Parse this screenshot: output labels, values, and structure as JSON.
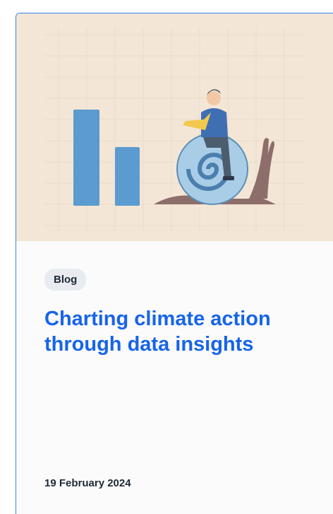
{
  "card": {
    "tag": "Blog",
    "title": "Charting climate action through data insights",
    "date": "19 February 2024"
  }
}
